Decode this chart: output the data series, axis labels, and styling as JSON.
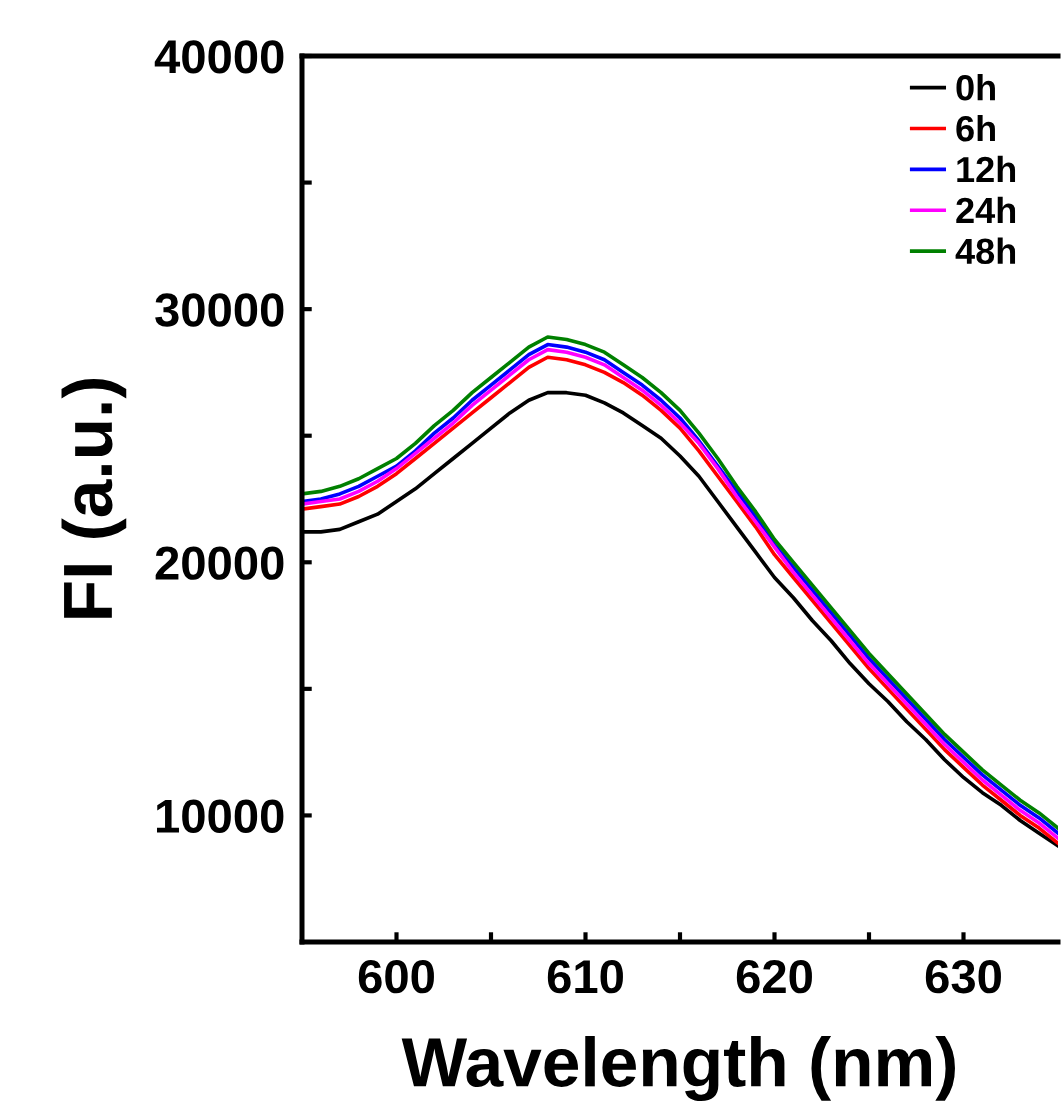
{
  "chart_data": {
    "type": "line",
    "xlabel": "Wavelength (nm)",
    "ylabel": "FI (a.u.)",
    "xlim": [
      595,
      635
    ],
    "ylim": [
      5000,
      40000
    ],
    "xticks": [
      600,
      {
        "value": 605,
        "label": null
      },
      610,
      {
        "value": 615,
        "label": null
      },
      620,
      {
        "value": 625,
        "label": null
      },
      630
    ],
    "yticks": [
      10000,
      {
        "value": 15000,
        "label": null
      },
      20000,
      {
        "value": 25000,
        "label": null
      },
      30000,
      {
        "value": 35000,
        "label": null
      },
      40000
    ],
    "x": [
      595,
      596,
      597,
      598,
      599,
      600,
      601,
      602,
      603,
      604,
      605,
      606,
      607,
      608,
      609,
      610,
      611,
      612,
      613,
      614,
      615,
      616,
      617,
      618,
      619,
      620,
      621,
      622,
      623,
      624,
      625,
      626,
      627,
      628,
      629,
      630,
      631,
      632,
      633,
      634,
      635
    ],
    "legend": "top right",
    "grid": false,
    "marker": "none",
    "line_style": "solid",
    "series": [
      {
        "name": "0h",
        "color": "#000000",
        "values": [
          21200,
          21200,
          21300,
          21600,
          21900,
          22400,
          22900,
          23500,
          24100,
          24700,
          25300,
          25900,
          26400,
          26700,
          26700,
          26600,
          26300,
          25900,
          25400,
          24900,
          24200,
          23400,
          22400,
          21400,
          20400,
          19400,
          18600,
          17700,
          16900,
          16000,
          15200,
          14500,
          13700,
          13000,
          12200,
          11500,
          10900,
          10400,
          9800,
          9300,
          8800
        ]
      },
      {
        "name": "6h",
        "color": "#ff0000",
        "values": [
          22100,
          22200,
          22300,
          22600,
          23000,
          23500,
          24100,
          24700,
          25300,
          25900,
          26500,
          27100,
          27700,
          28100,
          28000,
          27800,
          27500,
          27100,
          26600,
          26000,
          25300,
          24400,
          23400,
          22400,
          21400,
          20300,
          19400,
          18500,
          17600,
          16700,
          15800,
          15000,
          14200,
          13400,
          12600,
          11900,
          11200,
          10600,
          10000,
          9500,
          8900
        ]
      },
      {
        "name": "12h",
        "color": "#0000ff",
        "values": [
          22400,
          22500,
          22700,
          23000,
          23400,
          23800,
          24400,
          25100,
          25700,
          26400,
          27000,
          27600,
          28200,
          28600,
          28500,
          28300,
          28000,
          27500,
          27000,
          26400,
          25700,
          24800,
          23800,
          22800,
          21800,
          20700,
          19800,
          18900,
          18000,
          17100,
          16200,
          15400,
          14600,
          13800,
          13000,
          12300,
          11600,
          11000,
          10400,
          9900,
          9300
        ]
      },
      {
        "name": "24h",
        "color": "#ff00ff",
        "values": [
          22300,
          22400,
          22500,
          22800,
          23200,
          23700,
          24300,
          24900,
          25500,
          26200,
          26800,
          27400,
          28000,
          28400,
          28300,
          28100,
          27800,
          27300,
          26800,
          26200,
          25500,
          24700,
          23700,
          22600,
          21600,
          20600,
          19600,
          18700,
          17800,
          16900,
          16000,
          15200,
          14400,
          13600,
          12800,
          12100,
          11400,
          10800,
          10200,
          9700,
          9100
        ]
      },
      {
        "name": "48h",
        "color": "#008000",
        "values": [
          22700,
          22800,
          23000,
          23300,
          23700,
          24100,
          24700,
          25400,
          26000,
          26700,
          27300,
          27900,
          28500,
          28900,
          28800,
          28600,
          28300,
          27800,
          27300,
          26700,
          26000,
          25100,
          24100,
          23000,
          22000,
          20900,
          20000,
          19100,
          18200,
          17300,
          16400,
          15600,
          14800,
          14000,
          13200,
          12500,
          11800,
          11200,
          10600,
          10100,
          9500
        ]
      }
    ]
  }
}
